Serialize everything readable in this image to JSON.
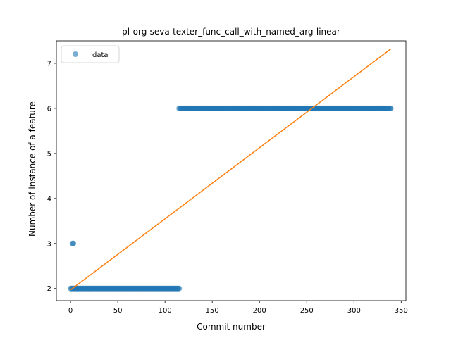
{
  "chart_data": {
    "type": "scatter",
    "title": "pl-org-seva-texter_func_call_with_named_arg-linear",
    "xlabel": "Commit number",
    "ylabel": "Number of instance of a feature",
    "xlim": [
      -15,
      355
    ],
    "ylim": [
      1.73,
      7.5
    ],
    "xticks": [
      0,
      50,
      100,
      150,
      200,
      250,
      300,
      350
    ],
    "yticks": [
      2,
      3,
      4,
      5,
      6,
      7
    ],
    "grid": false,
    "legend": {
      "position": "top-left",
      "entries": [
        "data"
      ]
    },
    "series": [
      {
        "name": "data",
        "kind": "scatter",
        "color": "#1f77b4",
        "segments": [
          {
            "x_start": 0,
            "x_end": 115,
            "y": 2
          },
          {
            "x_start": 2,
            "x_end": 3,
            "y": 3
          },
          {
            "x_start": 115,
            "x_end": 339,
            "y": 6
          }
        ]
      },
      {
        "kind": "line",
        "color": "#ff7f0e",
        "points": [
          [
            0,
            1.97
          ],
          [
            339,
            7.32
          ]
        ]
      }
    ]
  }
}
